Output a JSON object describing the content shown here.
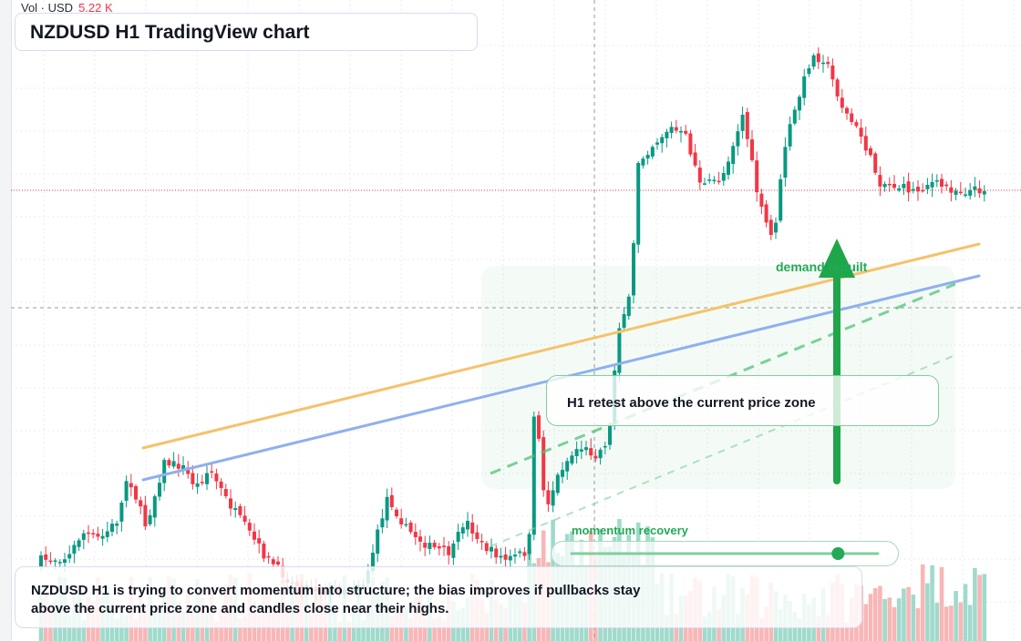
{
  "legend": {
    "vol_label": "Vol · USD",
    "vol_value": "5.22 K"
  },
  "title": "NZDUSD H1 TradingView chart",
  "annotations": {
    "retest_note": "H1 retest above the current price zone",
    "demand_label": "demand rebuilt",
    "momentum_label": "momentum recovery",
    "summary": "NZDUSD H1 is trying to convert momentum into structure; the bias improves if pullbacks stay above the current price zone and candles close near their highs."
  },
  "momentum_slider": {
    "level": 0.87
  },
  "colors": {
    "up": "#089981",
    "down": "#f23645",
    "vol_up": "#8fd3c3",
    "vol_down": "#f7a9a9",
    "trend_orange": "#f5c26b",
    "trend_blue": "#8fb0ee",
    "accent_green": "#22aa55",
    "arrow_green": "#1fa64a"
  },
  "icons": {
    "arrow": "arrow-up-icon"
  }
}
